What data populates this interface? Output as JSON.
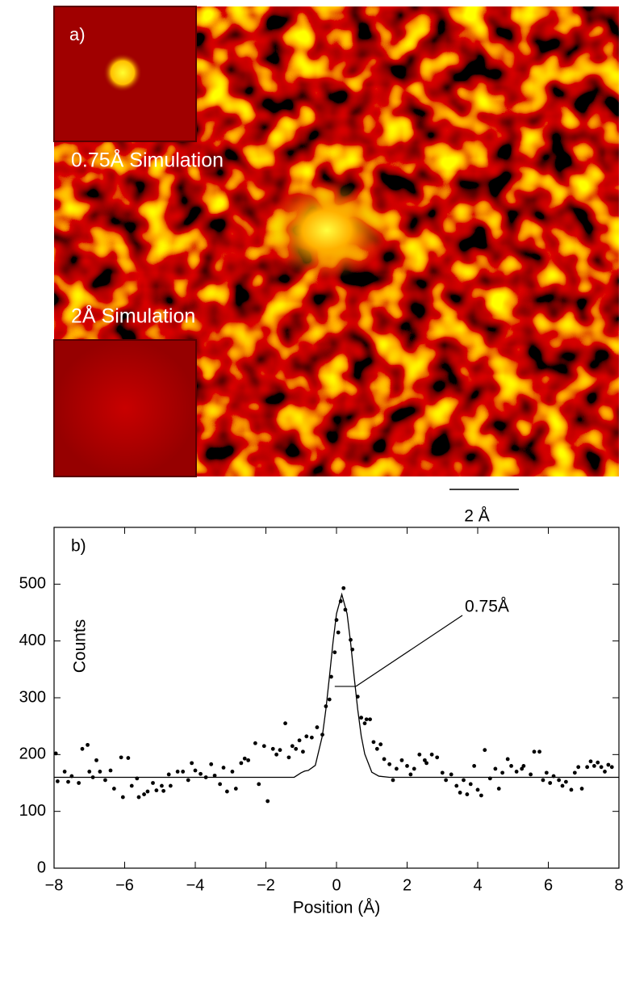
{
  "image_panel": {
    "label": "a)",
    "inset_top": "0.75Å Simulation",
    "inset_bottom": "2Å Simulation",
    "scale_bar": "2 Å"
  },
  "chart_data": {
    "type": "scatter",
    "label": "b)",
    "annotation": "0.75Å",
    "xlabel": "Position (Å)",
    "ylabel": "Counts",
    "xlim": [
      -8,
      8
    ],
    "ylim": [
      0,
      600
    ],
    "xticks": [
      {
        "value": -8,
        "label": "−8"
      },
      {
        "value": -6,
        "label": "−6"
      },
      {
        "value": -4,
        "label": "−4"
      },
      {
        "value": -2,
        "label": "−2"
      },
      0,
      2,
      4,
      6,
      8
    ],
    "yticks": [
      0,
      100,
      200,
      300,
      400,
      500
    ],
    "fwhm": {
      "x": [
        -0.05,
        0.55
      ],
      "values": [
        320,
        320
      ]
    },
    "series": [
      {
        "style": "points",
        "color": "#000000",
        "x": [
          -7.95,
          -7.9,
          -7.7,
          -7.6,
          -7.5,
          -7.3,
          -7.2,
          -7.05,
          -7.0,
          -6.9,
          -6.8,
          -6.7,
          -6.55,
          -6.4,
          -6.3,
          -6.1,
          -6.05,
          -5.9,
          -5.8,
          -5.65,
          -5.6,
          -5.45,
          -5.35,
          -5.2,
          -5.1,
          -4.95,
          -4.9,
          -4.75,
          -4.7,
          -4.5,
          -4.35,
          -4.2,
          -4.1,
          -4.0,
          -3.85,
          -3.7,
          -3.55,
          -3.45,
          -3.3,
          -3.2,
          -3.1,
          -2.95,
          -2.85,
          -2.7,
          -2.6,
          -2.5,
          -2.3,
          -2.2,
          -2.05,
          -1.95,
          -1.8,
          -1.7,
          -1.6,
          -1.45,
          -1.35,
          -1.25,
          -1.15,
          -1.05,
          -0.95,
          -0.85,
          -0.7,
          -0.55,
          -0.4,
          -0.3,
          -0.2,
          -0.15,
          -0.05,
          0.0,
          0.05,
          0.12,
          0.2,
          0.25,
          0.4,
          0.45,
          0.6,
          0.7,
          0.8,
          0.85,
          0.95,
          1.05,
          1.15,
          1.25,
          1.35,
          1.5,
          1.6,
          1.7,
          1.85,
          2.0,
          2.1,
          2.2,
          2.35,
          2.5,
          2.55,
          2.7,
          2.85,
          3.0,
          3.1,
          3.25,
          3.4,
          3.5,
          3.6,
          3.7,
          3.8,
          3.9,
          4.0,
          4.1,
          4.2,
          4.35,
          4.5,
          4.6,
          4.7,
          4.85,
          4.95,
          5.1,
          5.25,
          5.3,
          5.5,
          5.6,
          5.75,
          5.85,
          5.95,
          6.05,
          6.15,
          6.3,
          6.4,
          6.5,
          6.65,
          6.75,
          6.85,
          6.95,
          7.1,
          7.2,
          7.3,
          7.4,
          7.5,
          7.6,
          7.7,
          7.8
        ],
        "values": [
          202,
          153,
          170,
          152,
          162,
          150,
          210,
          217,
          170,
          160,
          190,
          170,
          155,
          172,
          140,
          195,
          125,
          194,
          145,
          158,
          125,
          130,
          135,
          150,
          137,
          145,
          136,
          165,
          145,
          170,
          170,
          155,
          185,
          172,
          166,
          160,
          183,
          163,
          148,
          177,
          135,
          170,
          140,
          185,
          193,
          190,
          220,
          148,
          215,
          118,
          210,
          200,
          208,
          255,
          195,
          215,
          210,
          225,
          205,
          232,
          230,
          248,
          235,
          285,
          297,
          337,
          380,
          437,
          415,
          470,
          493,
          455,
          402,
          385,
          302,
          265,
          255,
          262,
          262,
          222,
          210,
          218,
          192,
          183,
          155,
          175,
          190,
          180,
          165,
          175,
          200,
          190,
          185,
          200,
          195,
          168,
          155,
          165,
          145,
          133,
          155,
          130,
          148,
          180,
          138,
          128,
          208,
          158,
          175,
          140,
          168,
          192,
          180,
          170,
          175,
          180,
          165,
          205,
          205,
          155,
          168,
          150,
          162,
          155,
          145,
          152,
          138,
          168,
          178,
          140,
          178,
          188,
          180,
          186,
          178,
          170,
          182,
          178
        ]
      },
      {
        "style": "line",
        "color": "#000000",
        "x": [
          -8,
          -2,
          -1.2,
          -1.0,
          -0.9,
          -0.8,
          -0.6,
          -0.4,
          -0.3,
          -0.2,
          -0.1,
          0,
          0.15,
          0.3,
          0.4,
          0.5,
          0.6,
          0.7,
          0.8,
          1.0,
          1.2,
          1.5,
          2,
          8
        ],
        "values": [
          160,
          160,
          160,
          168,
          171,
          172,
          181,
          233,
          280,
          337,
          397,
          448,
          482,
          448,
          397,
          337,
          280,
          233,
          201,
          169,
          162,
          160,
          160,
          160
        ]
      }
    ]
  }
}
